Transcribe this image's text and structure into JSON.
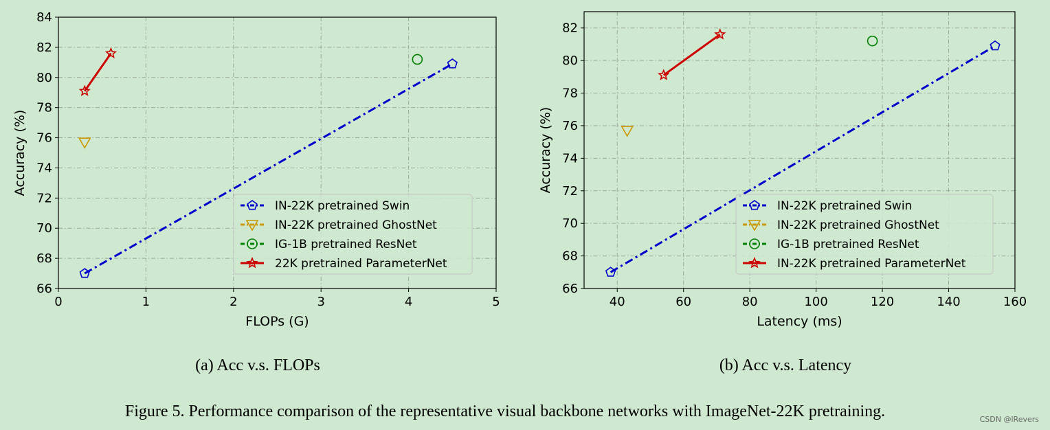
{
  "chart_data": [
    {
      "type": "scatter",
      "caption": "(a) Acc v.s. FLOPs",
      "xlabel": "FLOPs (G)",
      "ylabel": "Accuracy (%)",
      "xlim": [
        0,
        5
      ],
      "ylim": [
        66,
        84
      ],
      "xticks": [
        "0",
        "1",
        "2",
        "3",
        "4",
        "5"
      ],
      "yticks": [
        "66",
        "68",
        "70",
        "72",
        "74",
        "76",
        "78",
        "80",
        "82",
        "84"
      ],
      "grid": true,
      "legend_position": "lower-right",
      "series": [
        {
          "name": "IN-22K pretrained Swin",
          "marker": "pentagon",
          "line": "dashdot",
          "color": "#0000cc",
          "points": [
            [
              0.3,
              67.0
            ],
            [
              4.5,
              80.9
            ]
          ]
        },
        {
          "name": "IN-22K pretrained GhostNet",
          "marker": "triangle-down",
          "line": "dashdot",
          "color": "#cc9900",
          "points": [
            [
              0.3,
              75.7
            ]
          ]
        },
        {
          "name": "IG-1B pretrained ResNet",
          "marker": "circle",
          "line": "dashdot",
          "color": "#008000",
          "points": [
            [
              4.1,
              81.2
            ]
          ]
        },
        {
          "name": "22K pretrained ParameterNet",
          "marker": "star",
          "line": "solid",
          "color": "#cc0000",
          "points": [
            [
              0.3,
              79.1
            ],
            [
              0.6,
              81.6
            ]
          ]
        }
      ]
    },
    {
      "type": "scatter",
      "caption": "(b) Acc v.s. Latency",
      "xlabel": "Latency (ms)",
      "ylabel": "Accuracy (%)",
      "xlim": [
        30,
        160
      ],
      "ylim": [
        66,
        83
      ],
      "xticks": [
        "40",
        "60",
        "80",
        "100",
        "120",
        "140",
        "160"
      ],
      "yticks": [
        "66",
        "68",
        "70",
        "72",
        "74",
        "76",
        "78",
        "80",
        "82"
      ],
      "grid": true,
      "legend_position": "lower-right",
      "series": [
        {
          "name": "IN-22K pretrained Swin",
          "marker": "pentagon",
          "line": "dashdot",
          "color": "#0000cc",
          "points": [
            [
              38,
              67.0
            ],
            [
              154,
              80.9
            ]
          ]
        },
        {
          "name": "IN-22K pretrained GhostNet",
          "marker": "triangle-down",
          "line": "dashdot",
          "color": "#cc9900",
          "points": [
            [
              43,
              75.7
            ]
          ]
        },
        {
          "name": "IG-1B pretrained ResNet",
          "marker": "circle",
          "line": "dashdot",
          "color": "#008000",
          "points": [
            [
              117,
              81.2
            ]
          ]
        },
        {
          "name": "IN-22K pretrained ParameterNet",
          "marker": "star",
          "line": "solid",
          "color": "#cc0000",
          "points": [
            [
              54,
              79.1
            ],
            [
              71,
              81.6
            ]
          ]
        }
      ]
    }
  ],
  "figure_caption": "Figure 5. Performance comparison of the representative visual backbone networks with ImageNet-22K pretraining.",
  "watermark": "CSDN @lRevers"
}
